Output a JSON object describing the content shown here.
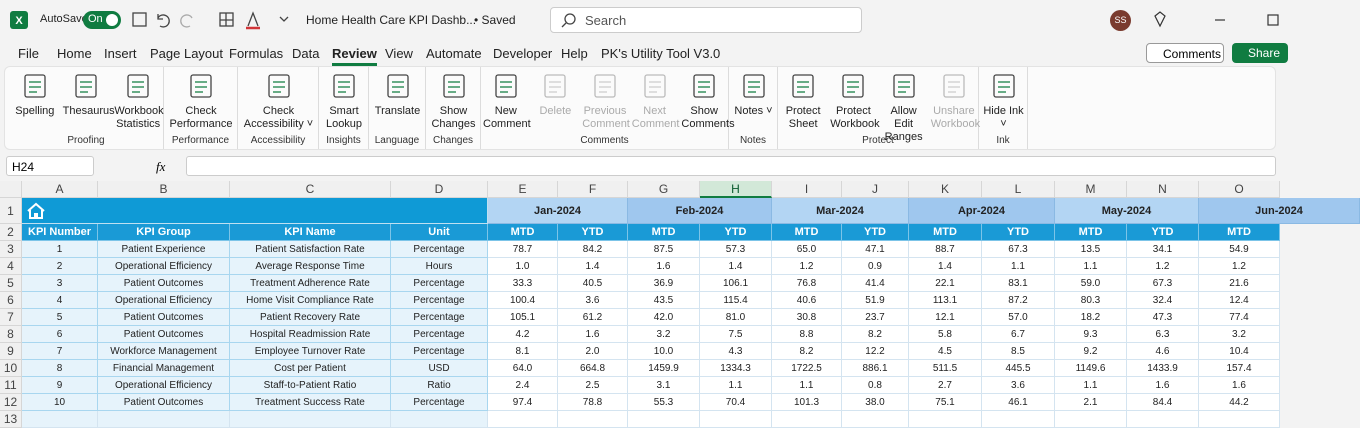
{
  "titlebar": {
    "autosave": "AutoSave",
    "toggle": "On",
    "filename": "Home Health Care KPI Dashb...",
    "status": "• Saved",
    "search": "Search",
    "avatar": "SS"
  },
  "menu": {
    "tabs": [
      "File",
      "Home",
      "Insert",
      "Page Layout",
      "Formulas",
      "Data",
      "Review",
      "View",
      "Automate",
      "Developer",
      "Help",
      "PK's Utility Tool V3.0"
    ],
    "active": 6,
    "comments": "Comments",
    "share": "Share"
  },
  "ribbon": {
    "groups": [
      {
        "name": "Proofing",
        "buttons": [
          {
            "label": "Spelling",
            "enabled": true
          },
          {
            "label": "Thesaurus",
            "enabled": true
          },
          {
            "label": "Workbook Statistics",
            "enabled": true
          }
        ]
      },
      {
        "name": "Performance",
        "buttons": [
          {
            "label": "Check Performance",
            "enabled": true
          }
        ]
      },
      {
        "name": "Accessibility",
        "buttons": [
          {
            "label": "Check Accessibility ˅",
            "enabled": true
          }
        ]
      },
      {
        "name": "Insights",
        "buttons": [
          {
            "label": "Smart Lookup",
            "enabled": true
          }
        ]
      },
      {
        "name": "Language",
        "buttons": [
          {
            "label": "Translate",
            "enabled": true
          }
        ]
      },
      {
        "name": "Changes",
        "buttons": [
          {
            "label": "Show Changes",
            "enabled": true
          }
        ]
      },
      {
        "name": "Comments",
        "buttons": [
          {
            "label": "New Comment",
            "enabled": true
          },
          {
            "label": "Delete",
            "enabled": false
          },
          {
            "label": "Previous Comment",
            "enabled": false
          },
          {
            "label": "Next Comment",
            "enabled": false
          },
          {
            "label": "Show Comments",
            "enabled": true
          }
        ]
      },
      {
        "name": "Notes",
        "buttons": [
          {
            "label": "Notes ˅",
            "enabled": true
          }
        ]
      },
      {
        "name": "Protect",
        "buttons": [
          {
            "label": "Protect Sheet",
            "enabled": true
          },
          {
            "label": "Protect Workbook",
            "enabled": true
          },
          {
            "label": "Allow Edit Ranges",
            "enabled": true
          },
          {
            "label": "Unshare Workbook",
            "enabled": false
          }
        ]
      },
      {
        "name": "Ink",
        "buttons": [
          {
            "label": "Hide Ink ˅",
            "enabled": true
          }
        ]
      }
    ]
  },
  "formula_bar": {
    "name_box": "H24",
    "fx": "fx"
  },
  "sheet": {
    "columns": [
      "A",
      "B",
      "C",
      "D",
      "E",
      "F",
      "G",
      "H",
      "I",
      "J",
      "K",
      "L",
      "M",
      "N",
      "O"
    ],
    "selected_column": 7,
    "rows": [
      "1",
      "2",
      "3",
      "4",
      "5",
      "6",
      "7",
      "8",
      "9",
      "10",
      "11",
      "12",
      "13"
    ],
    "months": [
      "Jan-2024",
      "Feb-2024",
      "Mar-2024",
      "Apr-2024",
      "May-2024",
      "Jun-2024"
    ],
    "header_row": [
      "KPI Number",
      "KPI Group",
      "KPI Name",
      "Unit",
      "MTD",
      "YTD",
      "MTD",
      "YTD",
      "MTD",
      "YTD",
      "MTD",
      "YTD",
      "MTD",
      "YTD",
      "MTD"
    ],
    "kpis": [
      [
        "1",
        "Patient Experience",
        "Patient Satisfaction Rate",
        "Percentage",
        "78.7",
        "84.2",
        "87.5",
        "57.3",
        "65.0",
        "47.1",
        "88.7",
        "67.3",
        "13.5",
        "34.1",
        "54.9"
      ],
      [
        "2",
        "Operational Efficiency",
        "Average Response Time",
        "Hours",
        "1.0",
        "1.4",
        "1.6",
        "1.4",
        "1.2",
        "0.9",
        "1.4",
        "1.1",
        "1.1",
        "1.2",
        "1.2"
      ],
      [
        "3",
        "Patient Outcomes",
        "Treatment Adherence Rate",
        "Percentage",
        "33.3",
        "40.5",
        "36.9",
        "106.1",
        "76.8",
        "41.4",
        "22.1",
        "83.1",
        "59.0",
        "67.3",
        "21.6"
      ],
      [
        "4",
        "Operational Efficiency",
        "Home Visit Compliance Rate",
        "Percentage",
        "100.4",
        "3.6",
        "43.5",
        "115.4",
        "40.6",
        "51.9",
        "113.1",
        "87.2",
        "80.3",
        "32.4",
        "12.4"
      ],
      [
        "5",
        "Patient Outcomes",
        "Patient Recovery Rate",
        "Percentage",
        "105.1",
        "61.2",
        "42.0",
        "81.0",
        "30.8",
        "23.7",
        "12.1",
        "57.0",
        "18.2",
        "47.3",
        "77.4"
      ],
      [
        "6",
        "Patient Outcomes",
        "Hospital Readmission Rate",
        "Percentage",
        "4.2",
        "1.6",
        "3.2",
        "7.5",
        "8.8",
        "8.2",
        "5.8",
        "6.7",
        "9.3",
        "6.3",
        "3.2"
      ],
      [
        "7",
        "Workforce Management",
        "Employee Turnover Rate",
        "Percentage",
        "8.1",
        "2.0",
        "10.0",
        "4.3",
        "8.2",
        "12.2",
        "4.5",
        "8.5",
        "9.2",
        "4.6",
        "10.4"
      ],
      [
        "8",
        "Financial Management",
        "Cost per Patient",
        "USD",
        "64.0",
        "664.8",
        "1459.9",
        "1334.3",
        "1722.5",
        "886.1",
        "511.5",
        "445.5",
        "1149.6",
        "1433.9",
        "157.4"
      ],
      [
        "9",
        "Operational Efficiency",
        "Staff-to-Patient Ratio",
        "Ratio",
        "2.4",
        "2.5",
        "3.1",
        "1.1",
        "1.1",
        "0.8",
        "2.7",
        "3.6",
        "1.1",
        "1.6",
        "1.6"
      ],
      [
        "10",
        "Patient Outcomes",
        "Treatment Success Rate",
        "Percentage",
        "97.4",
        "78.8",
        "55.3",
        "70.4",
        "101.3",
        "38.0",
        "75.1",
        "46.1",
        "2.1",
        "84.4",
        "44.2"
      ]
    ]
  }
}
